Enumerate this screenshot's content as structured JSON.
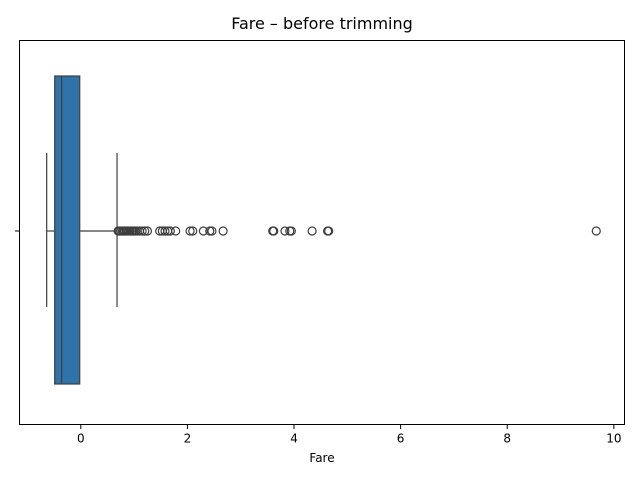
{
  "chart_data": {
    "type": "box",
    "title": "Fare – before trimming",
    "xlabel": "Fare",
    "ylabel": "",
    "orientation": "horizontal",
    "xlim": [
      -1.15,
      10.2
    ],
    "x_ticks": [
      0,
      2,
      4,
      6,
      8,
      10
    ],
    "x_tick_labels": [
      "0",
      "2",
      "4",
      "6",
      "8",
      "10"
    ],
    "grid": false,
    "series": [
      {
        "min_whisker": -0.64,
        "q1": -0.49,
        "median": -0.36,
        "q3": -0.02,
        "max_whisker": 0.68,
        "outliers": [
          0.7,
          0.72,
          0.75,
          0.78,
          0.8,
          0.82,
          0.85,
          0.87,
          0.9,
          0.93,
          0.96,
          0.98,
          1.0,
          1.03,
          1.06,
          1.1,
          1.15,
          1.2,
          1.25,
          1.48,
          1.53,
          1.58,
          1.63,
          1.68,
          1.78,
          2.05,
          2.1,
          2.3,
          2.42,
          2.46,
          2.67,
          3.6,
          3.62,
          3.83,
          3.92,
          3.95,
          4.34,
          4.63,
          4.65,
          9.67
        ]
      }
    ],
    "colors": {
      "box_fill": "#2f73a8",
      "line": "#3f3f3f",
      "axis": "#000000"
    }
  }
}
